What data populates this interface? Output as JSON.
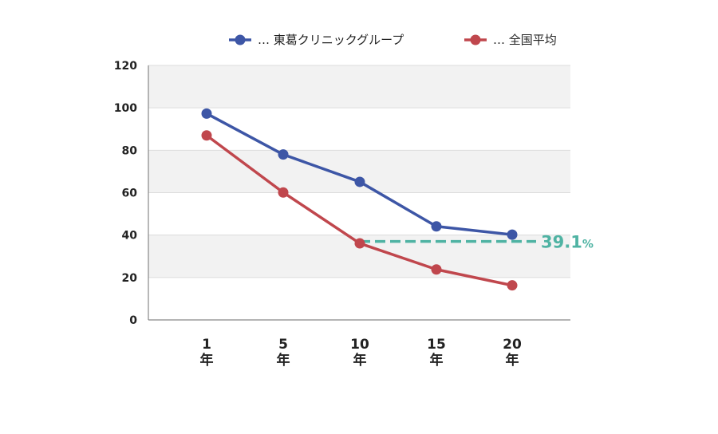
{
  "chart_data": {
    "type": "line",
    "categories": [
      "1年",
      "5年",
      "10年",
      "15年",
      "20年"
    ],
    "category_lines": [
      [
        "1",
        "年"
      ],
      [
        "5",
        "年"
      ],
      [
        "10",
        "年"
      ],
      [
        "15",
        "年"
      ],
      [
        "20",
        "年"
      ]
    ],
    "ylim": [
      0,
      120
    ],
    "yticks": [
      "0",
      "20",
      "40",
      "60",
      "80",
      "100",
      "120"
    ],
    "grid": "horizontal bands",
    "legend_position": "top",
    "series": [
      {
        "name": "… 東葛クリニックグループ",
        "color": "#3d56a6",
        "values": [
          97.3,
          78,
          65.1,
          44.1,
          40.2
        ]
      },
      {
        "name": "… 全国平均",
        "color": "#c0474d",
        "values": [
          87,
          60.1,
          36.1,
          23.8,
          16.3
        ]
      }
    ],
    "annotation": {
      "value": "39.1",
      "unit": "%",
      "color": "#4fb3a3",
      "line_y": 37,
      "from_category": 2
    }
  }
}
